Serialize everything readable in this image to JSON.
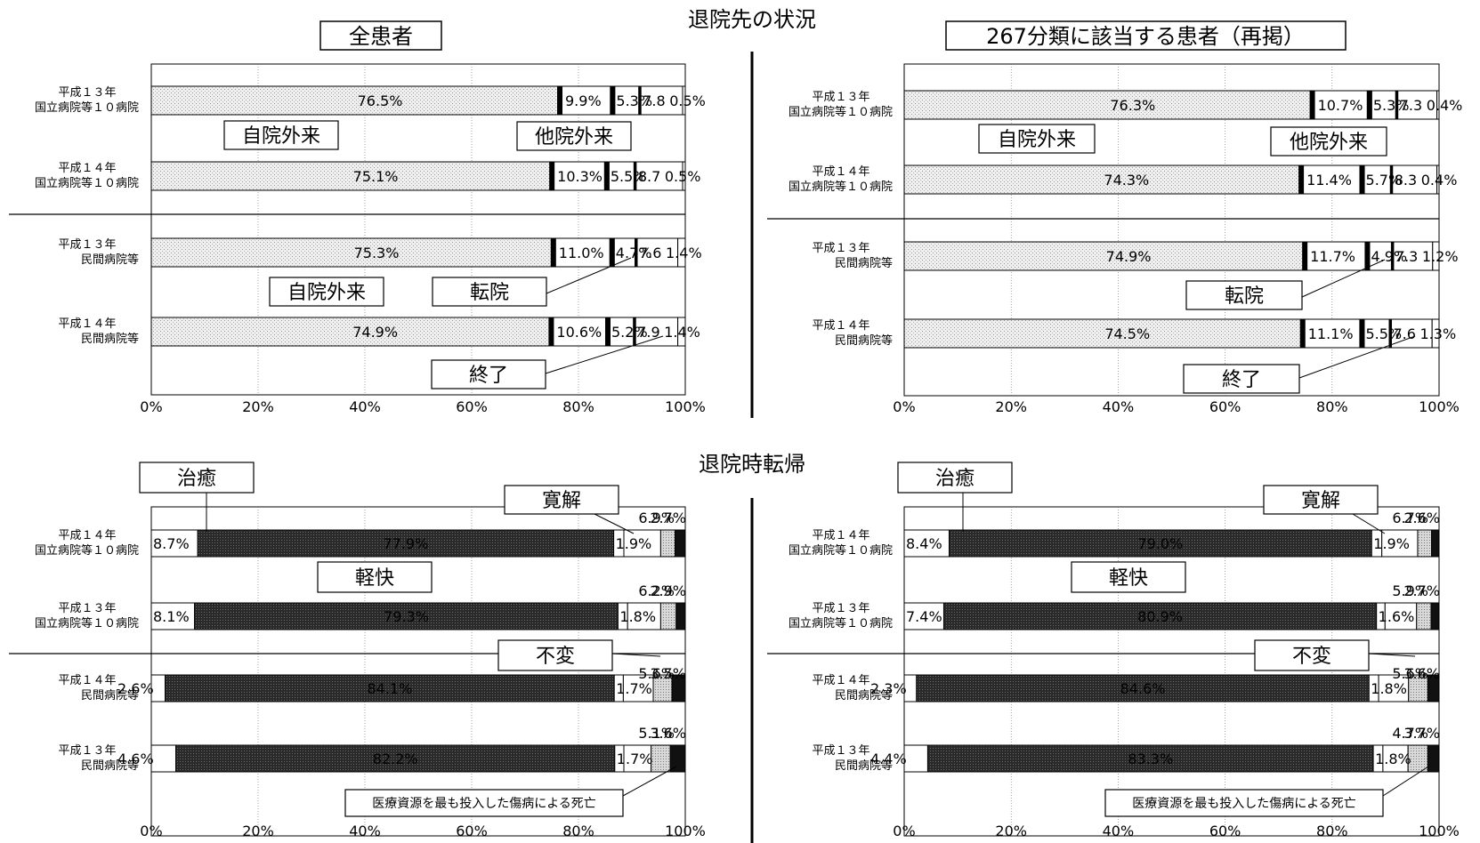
{
  "headings": {
    "top": "退院先の状況",
    "bottom": "退院時転帰"
  },
  "chart_data": [
    {
      "id": "dest-all",
      "type": "bar",
      "orientation": "horizontal",
      "stacked": "percent",
      "title": "全患者",
      "x_ticks": [
        "0%",
        "20%",
        "40%",
        "60%",
        "80%",
        "100%"
      ],
      "xlim": [
        0,
        100
      ],
      "grid": true,
      "categories": [
        [
          "平成１３年",
          "国立病院等１０病院"
        ],
        [
          "平成１４年",
          "国立病院等１０病院"
        ],
        [
          "平成１３年",
          "民間病院等"
        ],
        [
          "平成１４年",
          "民間病院等"
        ]
      ],
      "series": [
        {
          "values": [
            76.5,
            75.1,
            75.3,
            74.9
          ],
          "labels": [
            "76.5%",
            "75.1%",
            "75.3%",
            "74.9%"
          ]
        },
        {
          "values": [
            9.9,
            10.3,
            11.0,
            10.6
          ],
          "labels": [
            "9.9%",
            "10.3%",
            "11.0%",
            "10.6%"
          ]
        },
        {
          "values": [
            5.3,
            5.5,
            4.7,
            5.2
          ],
          "labels": [
            "5.3%",
            "5.5%",
            "4.7%",
            "5.2%"
          ]
        },
        {
          "values": [
            7.8,
            8.7,
            7.6,
            7.9
          ],
          "labels": [
            "7.8",
            "8.7",
            "7.6",
            "7.9"
          ]
        },
        {
          "values": [
            0.5,
            0.5,
            1.4,
            1.4
          ],
          "labels": [
            "0.5%",
            "0.5%",
            "1.4%",
            "1.4%"
          ]
        }
      ],
      "callouts": [
        "自院外来",
        "他院外来",
        "自院外来",
        "転院",
        "終了"
      ]
    },
    {
      "id": "dest-267",
      "type": "bar",
      "orientation": "horizontal",
      "stacked": "percent",
      "title": "267分類に該当する患者（再掲）",
      "x_ticks": [
        "0%",
        "20%",
        "40%",
        "60%",
        "80%",
        "100%"
      ],
      "xlim": [
        0,
        100
      ],
      "grid": true,
      "categories": [
        [
          "平成１３年",
          "国立病院等１０病院"
        ],
        [
          "平成１４年",
          "国立病院等１０病院"
        ],
        [
          "平成１３年",
          "民間病院等"
        ],
        [
          "平成１４年",
          "民間病院等"
        ]
      ],
      "series": [
        {
          "values": [
            76.3,
            74.3,
            74.9,
            74.5
          ],
          "labels": [
            "76.3%",
            "74.3%",
            "74.9%",
            "74.5%"
          ]
        },
        {
          "values": [
            10.7,
            11.4,
            11.7,
            11.1
          ],
          "labels": [
            "10.7%",
            "11.4%",
            "11.7%",
            "11.1%"
          ]
        },
        {
          "values": [
            5.3,
            5.7,
            4.9,
            5.5
          ],
          "labels": [
            "5.3%",
            "5.7%",
            "4.9%",
            "5.5%"
          ]
        },
        {
          "values": [
            7.3,
            8.3,
            7.3,
            7.6
          ],
          "labels": [
            "7.3",
            "8.3",
            "7.3",
            "7.6"
          ]
        },
        {
          "values": [
            0.4,
            0.4,
            1.2,
            1.3
          ],
          "labels": [
            "0.4%",
            "0.4%",
            "1.2%",
            "1.3%"
          ]
        }
      ],
      "callouts": [
        "自院外来",
        "他院外来",
        "転院",
        "終了"
      ]
    },
    {
      "id": "outcome-all",
      "type": "bar",
      "orientation": "horizontal",
      "stacked": "percent",
      "x_ticks": [
        "0%",
        "20%",
        "40%",
        "60%",
        "80%",
        "100%"
      ],
      "xlim": [
        0,
        100
      ],
      "grid": true,
      "categories": [
        [
          "平成１４年",
          "国立病院等１０病院"
        ],
        [
          "平成１３年",
          "国立病院等１０病院"
        ],
        [
          "平成１４年",
          "民間病院等"
        ],
        [
          "平成１３年",
          "民間病院等"
        ]
      ],
      "series": [
        {
          "values": [
            8.7,
            8.1,
            2.6,
            4.6
          ],
          "labels": [
            "8.7%",
            "8.1%",
            "2.6%",
            "4.6%"
          ]
        },
        {
          "values": [
            77.9,
            79.3,
            84.1,
            82.2
          ],
          "labels": [
            "77.9%",
            "79.3%",
            "84.1%",
            "82.2%"
          ]
        },
        {
          "values": [
            1.9,
            1.8,
            1.7,
            1.7
          ],
          "labels": [
            "1.9%",
            "1.8%",
            "1.7%",
            "1.7%"
          ]
        },
        {
          "values": [
            6.9,
            6.2,
            5.6,
            5.1
          ],
          "labels": [
            "6.9%",
            "6.2%",
            "5.6%",
            "5.1%"
          ]
        },
        {
          "values": [
            2.7,
            2.9,
            3.5,
            3.6
          ],
          "labels": [
            "2.7%",
            "2.9%",
            "3.5%",
            "3.6%"
          ]
        },
        {
          "values": [
            1.9,
            1.7,
            2.5,
            2.8
          ]
        }
      ],
      "callouts": [
        "治癒",
        "寛解",
        "軽快",
        "不変",
        "医療資源を最も投入した傷病による死亡"
      ]
    },
    {
      "id": "outcome-267",
      "type": "bar",
      "orientation": "horizontal",
      "stacked": "percent",
      "x_ticks": [
        "0%",
        "20%",
        "40%",
        "60%",
        "80%",
        "100%"
      ],
      "xlim": [
        0,
        100
      ],
      "grid": true,
      "categories": [
        [
          "平成１４年",
          "国立病院等１０病院"
        ],
        [
          "平成１３年",
          "国立病院等１０病院"
        ],
        [
          "平成１４年",
          "民間病院等"
        ],
        [
          "平成１３年",
          "民間病院等"
        ]
      ],
      "series": [
        {
          "values": [
            8.4,
            7.4,
            2.3,
            4.4
          ],
          "labels": [
            "8.4%",
            "7.4%",
            "2.3%",
            "4.4%"
          ]
        },
        {
          "values": [
            79.0,
            80.9,
            84.6,
            83.3
          ],
          "labels": [
            "79.0%",
            "80.9%",
            "84.6%",
            "83.3%"
          ]
        },
        {
          "values": [
            1.9,
            1.6,
            1.8,
            1.8
          ],
          "labels": [
            "1.9%",
            "1.6%",
            "1.8%",
            "1.8%"
          ]
        },
        {
          "values": [
            6.7,
            5.9,
            5.6,
            4.7
          ],
          "labels": [
            "6.7%",
            "5.9%",
            "5.6%",
            "4.7%"
          ]
        },
        {
          "values": [
            2.6,
            2.7,
            3.6,
            3.7
          ],
          "labels": [
            "2.6%",
            "2.7%",
            "3.6%",
            "3.7%"
          ]
        },
        {
          "values": [
            1.4,
            1.5,
            2.1,
            2.1
          ]
        }
      ],
      "callouts": [
        "治癒",
        "寛解",
        "軽快",
        "不変",
        "医療資源を最も投入した傷病による死亡"
      ]
    }
  ]
}
